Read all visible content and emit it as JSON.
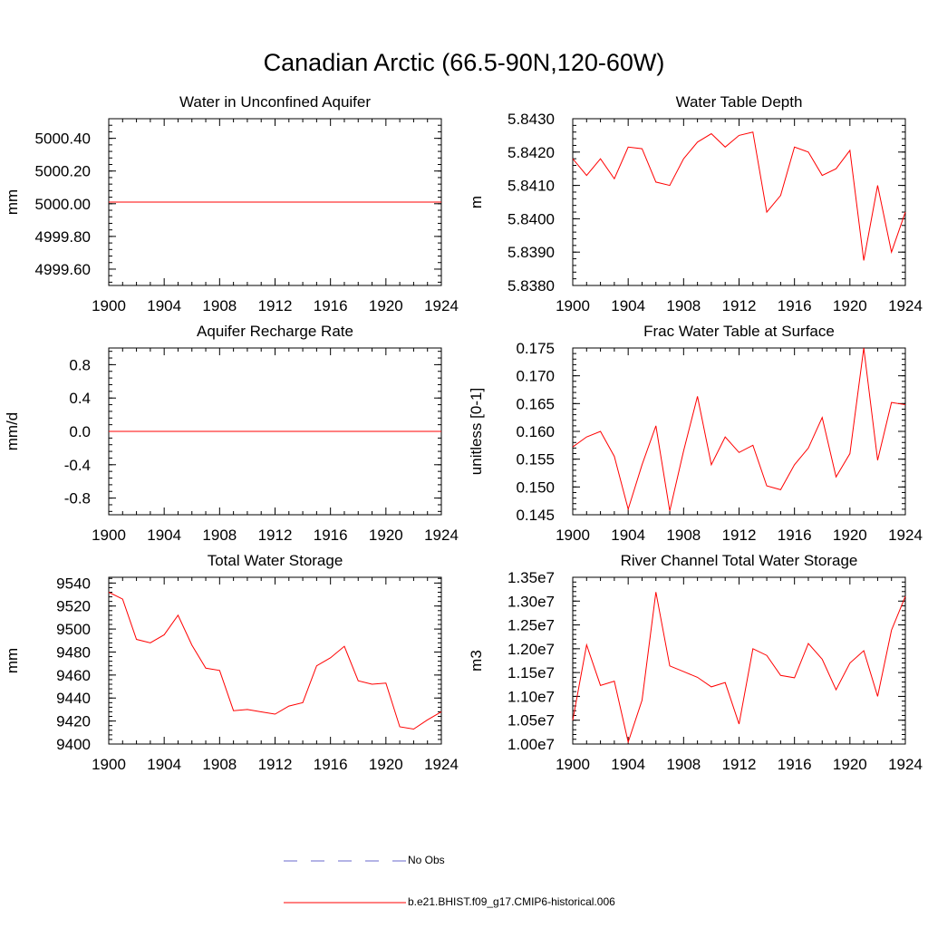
{
  "title": "Canadian Arctic (66.5-90N,120-60W)",
  "legend": {
    "obs_label": "No Obs",
    "obs_color": "#6a6acd",
    "model_label": "b.e21.BHIST.f09_g17.CMIP6-historical.006",
    "model_color": "#ff0000"
  },
  "chart_data": [
    {
      "type": "line",
      "title": "Water in Unconfined Aquifer",
      "xlabel": "",
      "ylabel": "mm",
      "xlim": [
        1900,
        1924
      ],
      "ylim": [
        4999.5,
        5000.52
      ],
      "xticks": [
        "1900",
        "1904",
        "1908",
        "1912",
        "1916",
        "1920",
        "1924"
      ],
      "yticks": [
        "4999.60",
        "4999.80",
        "5000.00",
        "5000.20",
        "5000.40"
      ],
      "x": [
        1900,
        1901,
        1902,
        1903,
        1904,
        1905,
        1906,
        1907,
        1908,
        1909,
        1910,
        1911,
        1912,
        1913,
        1914,
        1915,
        1916,
        1917,
        1918,
        1919,
        1920,
        1921,
        1922,
        1923,
        1924
      ],
      "series": [
        {
          "values": [
            5000.01,
            5000.01,
            5000.01,
            5000.01,
            5000.01,
            5000.01,
            5000.01,
            5000.01,
            5000.01,
            5000.01,
            5000.01,
            5000.01,
            5000.01,
            5000.01,
            5000.01,
            5000.01,
            5000.01,
            5000.01,
            5000.01,
            5000.01,
            5000.01,
            5000.01,
            5000.01,
            5000.01,
            5000.01
          ]
        }
      ]
    },
    {
      "type": "line",
      "title": "Water Table Depth",
      "xlabel": "",
      "ylabel": "m",
      "xlim": [
        1900,
        1924
      ],
      "ylim": [
        5.838,
        5.843
      ],
      "xticks": [
        "1900",
        "1904",
        "1908",
        "1912",
        "1916",
        "1920",
        "1924"
      ],
      "yticks": [
        "5.8380",
        "5.8390",
        "5.8400",
        "5.8410",
        "5.8420",
        "5.8430"
      ],
      "x": [
        1900,
        1901,
        1902,
        1903,
        1904,
        1905,
        1906,
        1907,
        1908,
        1909,
        1910,
        1911,
        1912,
        1913,
        1914,
        1915,
        1916,
        1917,
        1918,
        1919,
        1920,
        1921,
        1922,
        1923,
        1924
      ],
      "series": [
        {
          "values": [
            5.8418,
            5.8413,
            5.8418,
            5.8412,
            5.84215,
            5.8421,
            5.8411,
            5.841,
            5.8418,
            5.8423,
            5.84255,
            5.84215,
            5.8425,
            5.8426,
            5.8402,
            5.8407,
            5.84215,
            5.842,
            5.8413,
            5.8415,
            5.84205,
            5.83875,
            5.841,
            5.839,
            5.8402
          ]
        }
      ]
    },
    {
      "type": "line",
      "title": "Aquifer Recharge Rate",
      "xlabel": "",
      "ylabel": "mm/d",
      "xlim": [
        1900,
        1924
      ],
      "ylim": [
        -1.0,
        1.0
      ],
      "xticks": [
        "1900",
        "1904",
        "1908",
        "1912",
        "1916",
        "1920",
        "1924"
      ],
      "yticks": [
        "-0.8",
        "-0.4",
        "0.0",
        "0.4",
        "0.8"
      ],
      "x": [
        1900,
        1901,
        1902,
        1903,
        1904,
        1905,
        1906,
        1907,
        1908,
        1909,
        1910,
        1911,
        1912,
        1913,
        1914,
        1915,
        1916,
        1917,
        1918,
        1919,
        1920,
        1921,
        1922,
        1923,
        1924
      ],
      "series": [
        {
          "values": [
            0,
            0,
            0,
            0,
            0,
            0,
            0,
            0,
            0,
            0,
            0,
            0,
            0,
            0,
            0,
            0,
            0,
            0,
            0,
            0,
            0,
            0,
            0,
            0,
            0
          ]
        }
      ]
    },
    {
      "type": "line",
      "title": "Frac Water Table at Surface",
      "xlabel": "",
      "ylabel": "unitless [0-1]",
      "xlim": [
        1900,
        1924
      ],
      "ylim": [
        0.145,
        0.175
      ],
      "xticks": [
        "1900",
        "1904",
        "1908",
        "1912",
        "1916",
        "1920",
        "1924"
      ],
      "yticks": [
        "0.145",
        "0.150",
        "0.155",
        "0.160",
        "0.165",
        "0.170",
        "0.175"
      ],
      "x": [
        1900,
        1901,
        1902,
        1903,
        1904,
        1905,
        1906,
        1907,
        1908,
        1909,
        1910,
        1911,
        1912,
        1913,
        1914,
        1915,
        1916,
        1917,
        1918,
        1919,
        1920,
        1921,
        1922,
        1923,
        1924
      ],
      "series": [
        {
          "values": [
            0.1572,
            0.159,
            0.16,
            0.1555,
            0.146,
            0.154,
            0.161,
            0.1457,
            0.1565,
            0.1663,
            0.154,
            0.159,
            0.1562,
            0.1575,
            0.1502,
            0.1495,
            0.154,
            0.157,
            0.1625,
            0.1518,
            0.156,
            0.175,
            0.1548,
            0.1652,
            0.1648
          ]
        }
      ]
    },
    {
      "type": "line",
      "title": "Total Water Storage",
      "xlabel": "",
      "ylabel": "mm",
      "xlim": [
        1900,
        1924
      ],
      "ylim": [
        9400,
        9545
      ],
      "xticks": [
        "1900",
        "1904",
        "1908",
        "1912",
        "1916",
        "1920",
        "1924"
      ],
      "yticks": [
        "9400",
        "9420",
        "9440",
        "9460",
        "9480",
        "9500",
        "9520",
        "9540"
      ],
      "x": [
        1900,
        1901,
        1902,
        1903,
        1904,
        1905,
        1906,
        1907,
        1908,
        1909,
        1910,
        1911,
        1912,
        1913,
        1914,
        1915,
        1916,
        1917,
        1918,
        1919,
        1920,
        1921,
        1922,
        1923,
        1924
      ],
      "series": [
        {
          "values": [
            9532,
            9526,
            9491,
            9488,
            9495,
            9512,
            9486,
            9466,
            9464,
            9429,
            9430,
            9428,
            9426,
            9433,
            9436,
            9468,
            9475,
            9485,
            9455,
            9452,
            9453,
            9415,
            9413,
            9421,
            9428
          ]
        }
      ]
    },
    {
      "type": "line",
      "title": "River Channel Total Water Storage",
      "xlabel": "",
      "ylabel": "m3",
      "xlim": [
        1900,
        1924
      ],
      "ylim": [
        10000000.0,
        13500000.0
      ],
      "xticks": [
        "1900",
        "1904",
        "1908",
        "1912",
        "1916",
        "1920",
        "1924"
      ],
      "yticks": [
        "1.00e7",
        "1.05e7",
        "1.10e7",
        "1.15e7",
        "1.20e7",
        "1.25e7",
        "1.30e7",
        "1.35e7"
      ],
      "x": [
        1900,
        1901,
        1902,
        1903,
        1904,
        1905,
        1906,
        1907,
        1908,
        1909,
        1910,
        1911,
        1912,
        1913,
        1914,
        1915,
        1916,
        1917,
        1918,
        1919,
        1920,
        1921,
        1922,
        1923,
        1924
      ],
      "series": [
        {
          "values": [
            10500000,
            12080000,
            11230000,
            11320000,
            10040000,
            10920000,
            13190000,
            11640000,
            11520000,
            11400000,
            11200000,
            11290000,
            10420000,
            12000000,
            11860000,
            11440000,
            11390000,
            12110000,
            11780000,
            11140000,
            11700000,
            11960000,
            11000000,
            12390000,
            13100000
          ]
        }
      ]
    }
  ]
}
